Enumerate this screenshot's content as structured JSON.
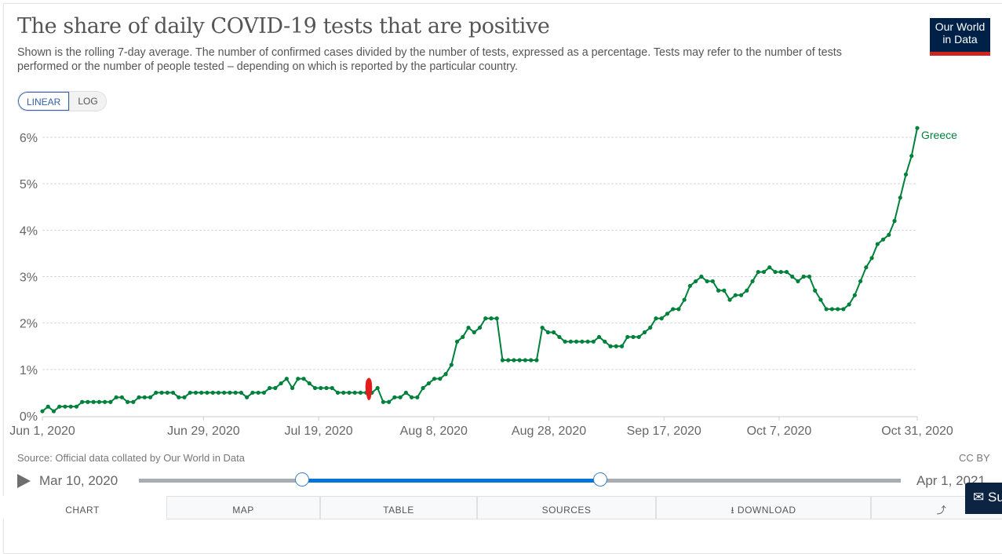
{
  "header": {
    "title": "The share of daily COVID-19 tests that are positive",
    "subtitle": "Shown is the rolling 7-day average. The number of confirmed cases divided by the number of tests, expressed as a percentage. Tests may refer to the number of tests performed or the number of people tested – depending on which is reported by the particular country.",
    "logo_line1": "Our World",
    "logo_line2": "in Data"
  },
  "scale_toggle": {
    "linear": "LINEAR",
    "log": "LOG",
    "selected": "LINEAR"
  },
  "chart_data": {
    "type": "line",
    "title": "The share of daily COVID-19 tests that are positive",
    "xlabel": "",
    "ylabel": "",
    "x_start": "2020-06-01",
    "x_end": "2020-10-31",
    "x_ticks": [
      "Jun 1, 2020",
      "Jun 29, 2020",
      "Jul 19, 2020",
      "Aug 8, 2020",
      "Aug 28, 2020",
      "Sep 17, 2020",
      "Oct 7, 2020",
      "Oct 31, 2020"
    ],
    "x_tick_days": [
      0,
      28,
      48,
      68,
      88,
      108,
      128,
      152
    ],
    "y_ticks": [
      "0%",
      "1%",
      "2%",
      "3%",
      "4%",
      "5%",
      "6%"
    ],
    "ylim": [
      0,
      6
    ],
    "grid": true,
    "legend": "end-label",
    "series": [
      {
        "name": "Greece",
        "color": "#00813b",
        "unit": "%",
        "values": [
          0.1,
          0.2,
          0.1,
          0.2,
          0.2,
          0.2,
          0.2,
          0.3,
          0.3,
          0.3,
          0.3,
          0.3,
          0.3,
          0.4,
          0.4,
          0.3,
          0.3,
          0.4,
          0.4,
          0.4,
          0.5,
          0.5,
          0.5,
          0.5,
          0.4,
          0.4,
          0.5,
          0.5,
          0.5,
          0.5,
          0.5,
          0.5,
          0.5,
          0.5,
          0.5,
          0.5,
          0.4,
          0.5,
          0.5,
          0.5,
          0.6,
          0.6,
          0.7,
          0.8,
          0.6,
          0.8,
          0.8,
          0.7,
          0.6,
          0.6,
          0.6,
          0.6,
          0.5,
          0.5,
          0.5,
          0.5,
          0.5,
          0.5,
          0.5,
          0.6,
          0.3,
          0.3,
          0.4,
          0.4,
          0.5,
          0.4,
          0.4,
          0.6,
          0.7,
          0.8,
          0.8,
          0.9,
          1.1,
          1.6,
          1.7,
          1.9,
          1.8,
          1.9,
          2.1,
          2.1,
          2.1,
          1.2,
          1.2,
          1.2,
          1.2,
          1.2,
          1.2,
          1.2,
          1.9,
          1.8,
          1.8,
          1.7,
          1.6,
          1.6,
          1.6,
          1.6,
          1.6,
          1.6,
          1.7,
          1.6,
          1.5,
          1.5,
          1.5,
          1.7,
          1.7,
          1.7,
          1.8,
          1.9,
          2.1,
          2.1,
          2.2,
          2.3,
          2.3,
          2.5,
          2.8,
          2.9,
          3.0,
          2.9,
          2.9,
          2.7,
          2.7,
          2.5,
          2.6,
          2.6,
          2.7,
          2.9,
          3.1,
          3.1,
          3.2,
          3.1,
          3.1,
          3.1,
          3.0,
          2.9,
          3.0,
          3.0,
          2.7,
          2.5,
          2.3,
          2.3,
          2.3,
          2.3,
          2.4,
          2.6,
          2.9,
          3.2,
          3.4,
          3.7,
          3.8,
          3.9,
          4.2,
          4.7,
          5.2,
          5.6,
          6.2
        ]
      }
    ],
    "source": "Source: Official data collated by Our World in Data",
    "license": "CC BY"
  },
  "timeline": {
    "start_label": "Mar 10, 2020",
    "end_label": "Apr 1, 2021",
    "range_start_fraction": 0.214,
    "range_end_fraction": 0.606
  },
  "tabs": [
    {
      "label": "CHART",
      "active": true
    },
    {
      "label": "MAP",
      "active": false
    },
    {
      "label": "TABLE",
      "active": false
    },
    {
      "label": "SOURCES",
      "active": false
    },
    {
      "label": "⭳ DOWNLOAD",
      "active": false
    },
    {
      "label": "",
      "icon": "share-icon",
      "active": false
    }
  ],
  "survey_button": {
    "label": "Su",
    "icon": "feedback-icon"
  }
}
